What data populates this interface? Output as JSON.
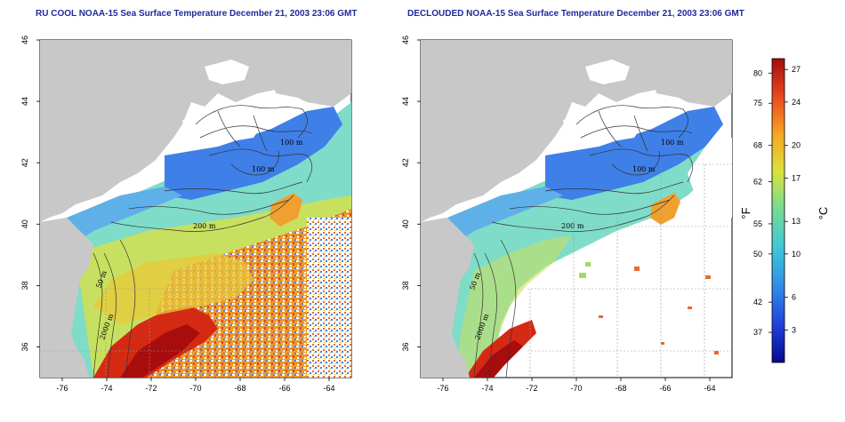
{
  "left_panel": {
    "title": "RU COOL NOAA-15 Sea Surface Temperature December 21, 2003 23:06 GMT",
    "x_ticks": [
      "-76",
      "-74",
      "-72",
      "-70",
      "-68",
      "-66",
      "-64"
    ],
    "y_ticks": [
      "36",
      "38",
      "40",
      "42",
      "44",
      "46"
    ],
    "contour_labels": [
      "100 m",
      "100 m",
      "200 m",
      "50 m",
      "2000 m"
    ]
  },
  "right_panel": {
    "title": "DECLOUDED NOAA-15 Sea Surface Temperature December 21, 2003 23:06 GMT",
    "x_ticks": [
      "-76",
      "-74",
      "-72",
      "-70",
      "-68",
      "-66",
      "-64"
    ],
    "y_ticks": [
      "36",
      "38",
      "40",
      "42",
      "44",
      "46"
    ],
    "contour_labels": [
      "100 m",
      "100 m",
      "200 m",
      "50 m",
      "2000 m"
    ]
  },
  "colorbar": {
    "fahrenheit_unit": "°F",
    "celsius_unit": "°C",
    "fahrenheit_ticks": [
      "80",
      "75",
      "68",
      "62",
      "55",
      "50",
      "42",
      "37"
    ],
    "celsius_ticks": [
      "27",
      "24",
      "20",
      "17",
      "13",
      "10",
      "6",
      "3"
    ],
    "colors": [
      "#08088f",
      "#1f3fd8",
      "#2f8ee8",
      "#3fc8d8",
      "#7fdc8a",
      "#dce13a",
      "#f5a623",
      "#e8451e",
      "#a30d0d"
    ]
  },
  "map_colors": {
    "land": "#c8c8c8",
    "ocean_no_data": "#ffffff",
    "contour": "#333333"
  }
}
